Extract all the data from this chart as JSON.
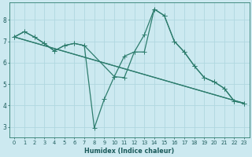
{
  "background_color": "#cce9f0",
  "grid_color": "#b0d8e0",
  "line_color": "#2e7d6e",
  "xlim": [
    -0.5,
    23.5
  ],
  "ylim": [
    2.5,
    8.8
  ],
  "xticks": [
    0,
    1,
    2,
    3,
    4,
    5,
    6,
    7,
    8,
    9,
    10,
    11,
    12,
    13,
    14,
    15,
    16,
    17,
    18,
    19,
    20,
    21,
    22,
    23
  ],
  "yticks": [
    3,
    4,
    5,
    6,
    7,
    8
  ],
  "xlabel": "Humidex (Indice chaleur)",
  "line1_x": [
    0,
    1,
    2,
    3,
    4,
    5,
    6,
    7,
    8,
    9,
    10,
    11,
    12,
    13,
    14,
    15,
    16,
    17,
    18,
    19,
    20,
    21,
    22,
    23
  ],
  "line1_y": [
    7.2,
    7.45,
    7.2,
    6.9,
    6.55,
    6.8,
    6.9,
    6.8,
    2.95,
    4.3,
    5.35,
    5.3,
    6.5,
    6.5,
    8.5,
    8.2,
    7.0,
    6.5,
    5.85,
    5.3,
    5.1,
    4.8,
    4.2,
    4.1
  ],
  "line2_x": [
    0,
    23
  ],
  "line2_y": [
    7.2,
    4.1
  ],
  "line3_x": [
    0,
    1,
    2,
    3,
    4,
    5,
    6,
    7,
    10,
    11,
    12,
    13,
    14,
    15,
    16,
    17,
    18,
    19,
    20,
    21,
    22,
    23
  ],
  "line3_y": [
    7.2,
    7.45,
    7.2,
    6.9,
    6.55,
    6.8,
    6.9,
    6.8,
    5.35,
    6.3,
    6.5,
    7.3,
    8.5,
    8.2,
    7.0,
    6.5,
    5.85,
    5.3,
    5.1,
    4.8,
    4.2,
    4.1
  ],
  "line4_x": [
    0,
    23
  ],
  "line4_y": [
    7.2,
    4.1
  ]
}
